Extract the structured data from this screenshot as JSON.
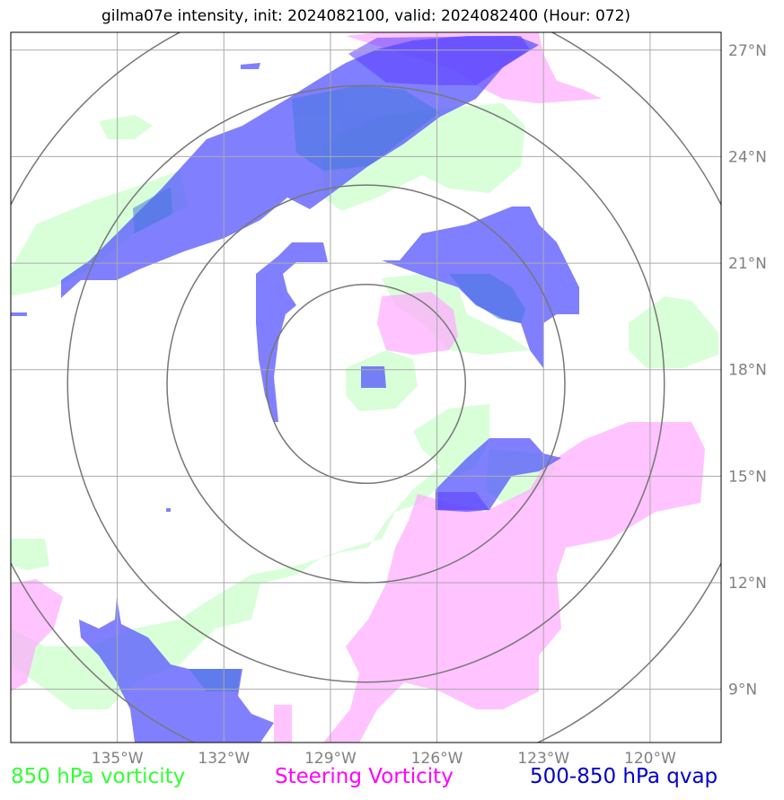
{
  "title": "gilma07e intensity, init: 2024082100, valid: 2024082400 (Hour: 072)",
  "map": {
    "lon_range": [
      -138,
      -118
    ],
    "lat_range": [
      7.5,
      27.5
    ],
    "lat_ticks": [
      {
        "value": 27,
        "label": "27°N"
      },
      {
        "value": 24,
        "label": "24°N"
      },
      {
        "value": 21,
        "label": "21°N"
      },
      {
        "value": 18,
        "label": "18°N"
      },
      {
        "value": 15,
        "label": "15°N"
      },
      {
        "value": 12,
        "label": "12°N"
      },
      {
        "value": 9,
        "label": "9°N"
      }
    ],
    "lon_ticks": [
      {
        "value": -135,
        "label": "135°W"
      },
      {
        "value": -132,
        "label": "132°W"
      },
      {
        "value": -129,
        "label": "129°W"
      },
      {
        "value": -126,
        "label": "126°W"
      },
      {
        "value": -123,
        "label": "123°W"
      },
      {
        "value": -120,
        "label": "120°W"
      }
    ],
    "center": {
      "lon": -128,
      "lat": 17.6
    },
    "range_rings_deg": [
      2.8,
      5.6,
      8.4,
      11.2
    ],
    "colors": {
      "vorticity_850": "#ccffcc",
      "steering_vorticity": "#ffaaff",
      "qvap": "#5555ff",
      "grid": "#aaaaaa",
      "rings": "#777777"
    }
  },
  "legend": {
    "vorticity_850": "850 hPa vorticity",
    "steering_vorticity": "Steering Vorticity",
    "qvap": "500-850 hPa qvap"
  }
}
